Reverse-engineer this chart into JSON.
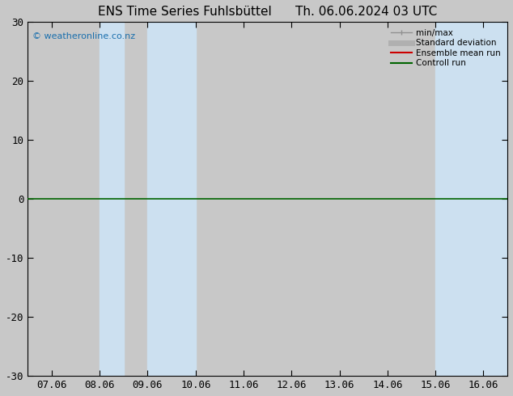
{
  "title": "ENS Time Series Fuhlsbüttel      Th. 06.06.2024 03 UTC",
  "watermark": "© weatheronline.co.nz",
  "ylim": [
    -30,
    30
  ],
  "yticks": [
    -30,
    -20,
    -10,
    0,
    10,
    20,
    30
  ],
  "xtick_labels": [
    "07.06",
    "08.06",
    "09.06",
    "10.06",
    "11.06",
    "12.06",
    "13.06",
    "14.06",
    "15.06",
    "16.06"
  ],
  "xtick_positions": [
    0,
    1,
    2,
    3,
    4,
    5,
    6,
    7,
    8,
    9
  ],
  "shade_bands": [
    {
      "xmin": 1.0,
      "xmax": 1.5
    },
    {
      "xmin": 2.0,
      "xmax": 3.0
    },
    {
      "xmin": 8.0,
      "xmax": 9.5
    }
  ],
  "shade_color": "#cce0f0",
  "zero_line_color": "#006400",
  "background_color": "#c8c8c8",
  "plot_bg_color": "#c8c8c8",
  "legend_items": [
    {
      "label": "min/max",
      "color": "#909090",
      "lw": 1.0
    },
    {
      "label": "Standard deviation",
      "color": "#b0b0b0",
      "lw": 5
    },
    {
      "label": "Ensemble mean run",
      "color": "#cc0000",
      "lw": 1.5
    },
    {
      "label": "Controll run",
      "color": "#006400",
      "lw": 1.5
    }
  ],
  "title_fontsize": 11,
  "tick_fontsize": 9,
  "watermark_fontsize": 8,
  "watermark_color": "#1a6fad"
}
